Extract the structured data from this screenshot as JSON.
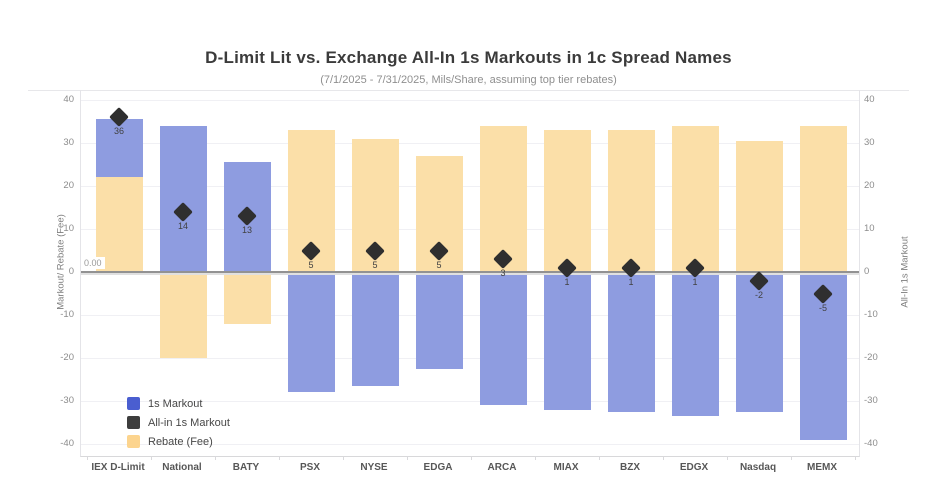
{
  "title": "D-Limit Lit vs. Exchange All-In 1s Markouts in 1c Spread Names",
  "subtitle": "(7/1/2025 - 7/31/2025, Mils/Share, assuming top tier rebates)",
  "left_axis": {
    "title": "Markout/ Rebate (Fee)",
    "ticks": [
      40,
      30,
      20,
      10,
      0,
      -10,
      -20,
      -30,
      -40
    ]
  },
  "right_axis": {
    "title": "All-In 1s Markout",
    "ticks": [
      40,
      30,
      20,
      10,
      0,
      -10,
      -20,
      -30,
      -40
    ]
  },
  "zero_reference_label": "0.00",
  "legend": {
    "items": [
      {
        "label": "1s Markout",
        "color": "#4a5ed0"
      },
      {
        "label": "All-in 1s Markout",
        "color": "#3d3d3d"
      },
      {
        "label": "Rebate (Fee)",
        "color": "#fcd48e"
      }
    ]
  },
  "colors": {
    "markout_bar": "#8e9ce0",
    "rebate_bar": "#fbdfa8",
    "all_in_diamond": "#2f2f2f",
    "zero_line": "#929292",
    "gridline": "#f0f0f4"
  },
  "chart_data": {
    "type": "bar",
    "categories": [
      "IEX D-Limit",
      "National",
      "BATY",
      "PSX",
      "NYSE",
      "EDGA",
      "ARCA",
      "MIAX",
      "BZX",
      "EDGX",
      "Nasdaq",
      "MEMX"
    ],
    "series": [
      {
        "name": "1s Markout",
        "type": "bar",
        "color": "#8e9ce0",
        "values": [
          13.5,
          34,
          25.5,
          -28,
          -26.5,
          -22.5,
          -31,
          -32,
          -32.5,
          -33.5,
          -32.5,
          -39
        ]
      },
      {
        "name": "Rebate (Fee)",
        "type": "bar",
        "color": "#fbdfa8",
        "values": [
          22,
          -20,
          -12,
          33,
          31,
          27,
          34,
          33,
          33,
          34,
          30.5,
          34
        ]
      },
      {
        "name": "All-in 1s Markout",
        "type": "scatter",
        "marker": "diamond",
        "color": "#2f2f2f",
        "values": [
          36,
          14,
          13,
          5,
          5,
          5,
          3,
          1,
          1,
          1,
          -2,
          -5
        ],
        "labels": [
          "36",
          "14",
          "13",
          "5",
          "5",
          "5",
          "3",
          "1",
          "1",
          "1",
          "-2",
          "-5"
        ]
      }
    ],
    "stacked": true,
    "ylim": [
      -40,
      40
    ],
    "ylabel_left": "Markout/ Rebate (Fee)",
    "ylabel_right": "All-In 1s Markout",
    "grid": true,
    "zero_reference_line": 0,
    "zero_reference_line_label": "0.00",
    "legend_position": "inside-bottom-left"
  }
}
